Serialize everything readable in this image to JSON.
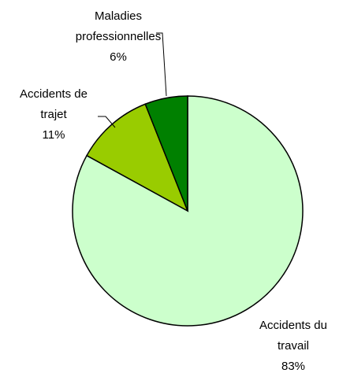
{
  "chart_data": {
    "type": "pie",
    "categories": [
      "Accidents du travail",
      "Accidents de trajet",
      "Maladies professionnelles"
    ],
    "values": [
      83,
      11,
      6
    ],
    "value_labels": [
      "83%",
      "11%",
      "6%"
    ],
    "colors": [
      "#ccffcc",
      "#99cc00",
      "#008000"
    ]
  }
}
